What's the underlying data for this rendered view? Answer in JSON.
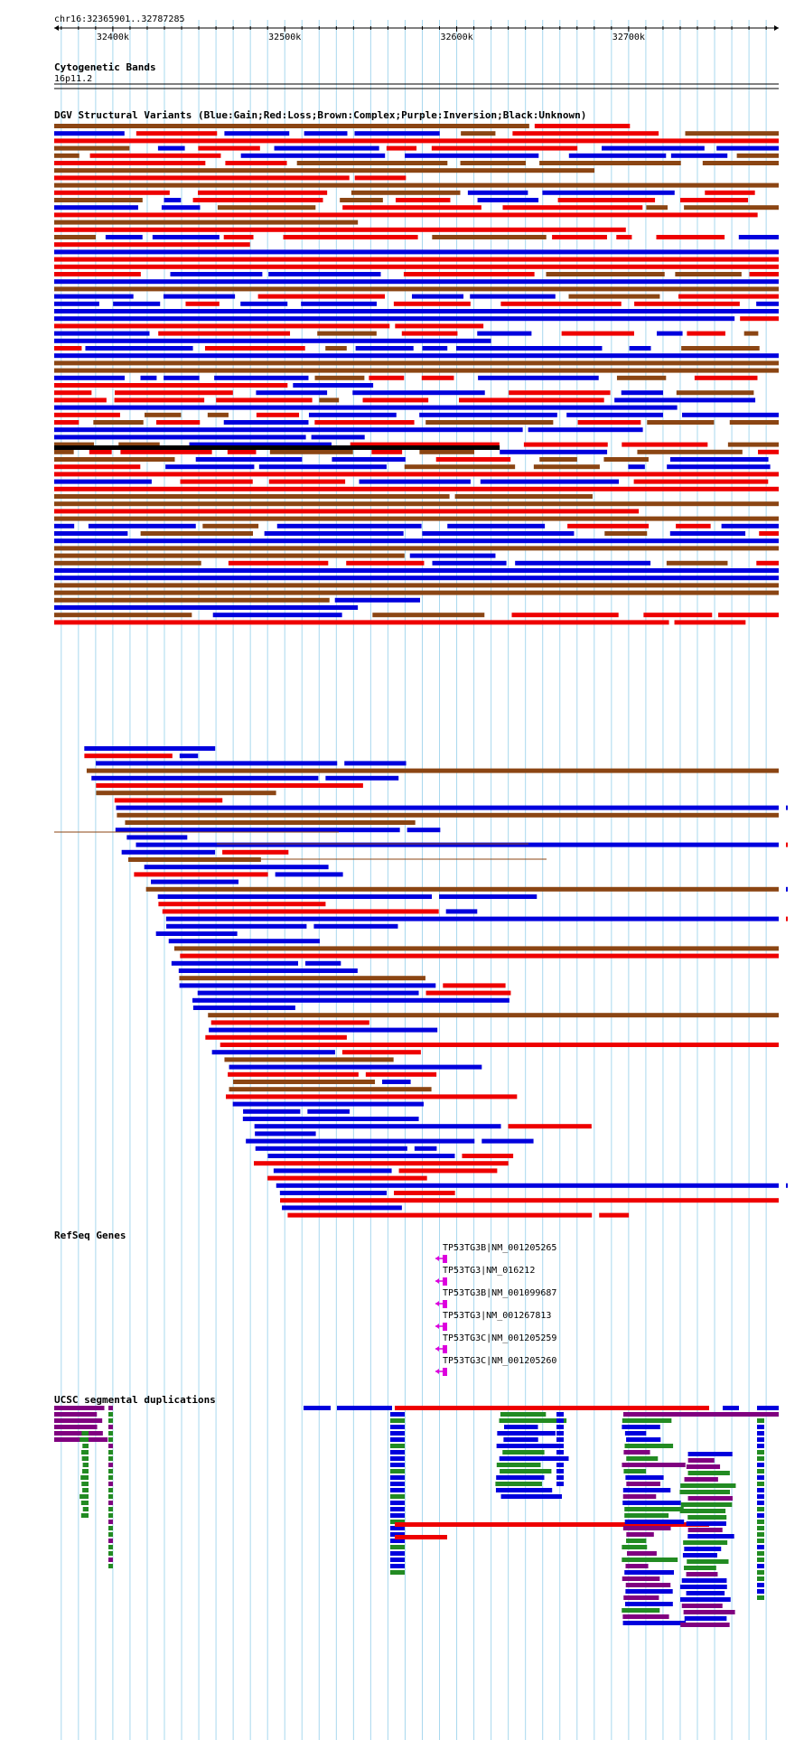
{
  "region": {
    "label": "chr16:32365901..32787285",
    "start": 32365901,
    "end": 32787285
  },
  "ruler": {
    "ticks": [
      {
        "pos": 32400000,
        "label": "32400k"
      },
      {
        "pos": 32500000,
        "label": "32500k"
      },
      {
        "pos": 32600000,
        "label": "32600k"
      },
      {
        "pos": 32700000,
        "label": "32700k"
      }
    ]
  },
  "colors": {
    "gain": "#0000dd",
    "loss": "#ee0000",
    "complex": "#8b4513",
    "inversion": "#800080",
    "unknown": "#000000",
    "gene": "#dd00dd",
    "segdup_green": "#228b22",
    "grid": "#a8d8ee"
  },
  "tracks": {
    "cytoband": {
      "title": "Cytogenetic Bands",
      "band": "16p11.2"
    },
    "dgv": {
      "title": "DGV Structural Variants (Blue:Gain;Red:Loss;Brown:Complex;Purple:Inversion;Black:Unknown)"
    },
    "refseq": {
      "title": "RefSeq Genes",
      "genes": [
        {
          "label": "TP53TG3B|NM_001205265"
        },
        {
          "label": "TP53TG3|NM_016212"
        },
        {
          "label": "TP53TG3B|NM_001099687"
        },
        {
          "label": "TP53TG3|NM_001267813"
        },
        {
          "label": "TP53TG3C|NM_001205259"
        },
        {
          "label": "TP53TG3C|NM_001205260"
        }
      ]
    },
    "segdup": {
      "title": "UCSC segmental duplications"
    }
  }
}
